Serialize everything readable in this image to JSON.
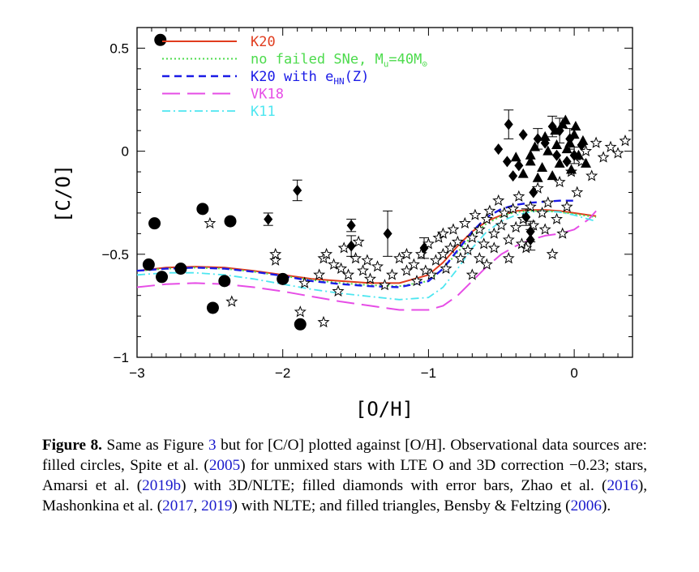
{
  "chart_data": {
    "type": "scatter",
    "xlabel": "[O/H]",
    "ylabel": "[C/O]",
    "xlim": [
      -3,
      0.4
    ],
    "ylim": [
      -1,
      0.6
    ],
    "x_ticks": [
      -3,
      -2,
      -1,
      0
    ],
    "x_tick_labels": [
      "−3",
      "−2",
      "−1",
      "0"
    ],
    "y_ticks": [
      -1,
      -0.5,
      0,
      0.5
    ],
    "y_tick_labels": [
      "−1",
      "−0.5",
      "0",
      "0.5"
    ],
    "legend_position": "top-left",
    "legend": [
      {
        "key": "k20",
        "text": "K20",
        "color": "#e03c1e",
        "dash": "solid",
        "width": 2
      },
      {
        "key": "nofailed",
        "text": "no failed SNe, M",
        "sub": "u",
        "after": "=40M",
        "sub2": "⊙",
        "color": "#4ddb4d",
        "dash": "dotted",
        "width": 2
      },
      {
        "key": "k20hn",
        "text": "K20 with e",
        "sub": "HN",
        "after": "(Z)",
        "color": "#1a1ae6",
        "dash": "dashed",
        "width": 2.4
      },
      {
        "key": "vk18",
        "text": "VK18",
        "color": "#e64de6",
        "dash": "longdash",
        "width": 2
      },
      {
        "key": "k11",
        "text": "K11",
        "color": "#4de6f0",
        "dash": "dashdot",
        "width": 1.8
      }
    ],
    "series": [
      {
        "key": "k20",
        "color": "#e03c1e",
        "x": [
          -3.0,
          -2.8,
          -2.6,
          -2.4,
          -2.2,
          -2.0,
          -1.8,
          -1.6,
          -1.4,
          -1.2,
          -1.0,
          -0.9,
          -0.8,
          -0.7,
          -0.6,
          -0.5,
          -0.4,
          -0.3,
          -0.2,
          -0.1,
          0.0,
          0.1,
          0.15
        ],
        "y": [
          -0.58,
          -0.565,
          -0.56,
          -0.565,
          -0.58,
          -0.6,
          -0.62,
          -0.63,
          -0.64,
          -0.64,
          -0.6,
          -0.54,
          -0.46,
          -0.39,
          -0.34,
          -0.31,
          -0.29,
          -0.285,
          -0.285,
          -0.29,
          -0.3,
          -0.31,
          -0.315
        ]
      },
      {
        "key": "nofailed",
        "color": "#4ddb4d",
        "x": [
          -3.0,
          -2.8,
          -2.6,
          -2.4,
          -2.2,
          -2.0,
          -1.8,
          -1.6,
          -1.4,
          -1.2,
          -1.0,
          -0.9,
          -0.8,
          -0.7,
          -0.6,
          -0.5,
          -0.4,
          -0.3,
          -0.2,
          -0.1,
          0.0,
          0.1,
          0.15
        ],
        "y": [
          -0.58,
          -0.57,
          -0.565,
          -0.57,
          -0.585,
          -0.605,
          -0.625,
          -0.64,
          -0.65,
          -0.655,
          -0.63,
          -0.57,
          -0.49,
          -0.41,
          -0.35,
          -0.315,
          -0.295,
          -0.29,
          -0.29,
          -0.295,
          -0.305,
          -0.315,
          -0.32
        ]
      },
      {
        "key": "k20hn",
        "color": "#1a1ae6",
        "x": [
          -3.0,
          -2.8,
          -2.6,
          -2.4,
          -2.2,
          -2.0,
          -1.8,
          -1.6,
          -1.4,
          -1.2,
          -1.0,
          -0.9,
          -0.8,
          -0.7,
          -0.6,
          -0.5,
          -0.4,
          -0.3,
          -0.2,
          -0.1,
          0.0
        ],
        "y": [
          -0.58,
          -0.57,
          -0.565,
          -0.57,
          -0.585,
          -0.605,
          -0.63,
          -0.645,
          -0.655,
          -0.66,
          -0.63,
          -0.57,
          -0.48,
          -0.39,
          -0.32,
          -0.28,
          -0.26,
          -0.25,
          -0.245,
          -0.24,
          -0.24
        ]
      },
      {
        "key": "vk18",
        "color": "#e64de6",
        "x": [
          -3.0,
          -2.8,
          -2.6,
          -2.4,
          -2.2,
          -2.0,
          -1.8,
          -1.6,
          -1.4,
          -1.2,
          -1.0,
          -0.9,
          -0.8,
          -0.7,
          -0.6,
          -0.5,
          -0.4,
          -0.3,
          -0.2,
          -0.1,
          0.0,
          0.1,
          0.15
        ],
        "y": [
          -0.66,
          -0.645,
          -0.64,
          -0.645,
          -0.66,
          -0.68,
          -0.705,
          -0.73,
          -0.75,
          -0.77,
          -0.77,
          -0.75,
          -0.7,
          -0.63,
          -0.56,
          -0.5,
          -0.46,
          -0.43,
          -0.41,
          -0.4,
          -0.38,
          -0.33,
          -0.29
        ]
      },
      {
        "key": "k11",
        "color": "#4de6f0",
        "x": [
          -3.0,
          -2.8,
          -2.6,
          -2.4,
          -2.2,
          -2.0,
          -1.8,
          -1.6,
          -1.4,
          -1.2,
          -1.0,
          -0.9,
          -0.8,
          -0.7,
          -0.6,
          -0.5,
          -0.4,
          -0.3,
          -0.2,
          -0.1,
          0.0,
          0.1,
          0.15
        ],
        "y": [
          -0.6,
          -0.59,
          -0.59,
          -0.6,
          -0.62,
          -0.645,
          -0.67,
          -0.69,
          -0.705,
          -0.72,
          -0.71,
          -0.66,
          -0.57,
          -0.47,
          -0.39,
          -0.34,
          -0.31,
          -0.295,
          -0.29,
          -0.295,
          -0.31,
          -0.33,
          -0.34
        ]
      }
    ],
    "circles": [
      [
        -2.84,
        0.54
      ],
      [
        -2.92,
        -0.55
      ],
      [
        -2.88,
        -0.35
      ],
      [
        -2.83,
        -0.61
      ],
      [
        -2.7,
        -0.57
      ],
      [
        -2.55,
        -0.28
      ],
      [
        -2.48,
        -0.76
      ],
      [
        -2.4,
        -0.63
      ],
      [
        -2.36,
        -0.34
      ],
      [
        -2.0,
        -0.62
      ],
      [
        -1.88,
        -0.84
      ]
    ],
    "diamonds": [
      {
        "x": -2.1,
        "y": -0.33,
        "err": 0.03
      },
      {
        "x": -1.9,
        "y": -0.19,
        "err": 0.05
      },
      {
        "x": -1.53,
        "y": -0.36,
        "err": 0.03
      },
      {
        "x": -1.53,
        "y": -0.46,
        "err": 0.05
      },
      {
        "x": -1.28,
        "y": -0.4,
        "err": 0.11
      },
      {
        "x": -1.03,
        "y": -0.47,
        "err": 0.05
      },
      {
        "x": -0.45,
        "y": 0.13,
        "err": 0.07
      },
      {
        "x": -0.52,
        "y": 0.01,
        "err": 0.0
      },
      {
        "x": -0.35,
        "y": 0.08,
        "err": 0.0
      },
      {
        "x": -0.3,
        "y": -0.39,
        "err": 0.05
      },
      {
        "x": -0.3,
        "y": -0.43,
        "err": 0.05
      },
      {
        "x": -0.33,
        "y": -0.32,
        "err": 0.04
      },
      {
        "x": -0.1,
        "y": 0.1,
        "err": 0.06
      },
      {
        "x": -0.03,
        "y": 0.06,
        "err": 0.05
      },
      {
        "x": 0.0,
        "y": -0.02,
        "err": 0.04
      },
      {
        "x": -0.15,
        "y": 0.12,
        "err": 0.05
      },
      {
        "x": -0.2,
        "y": 0.04,
        "err": 0.0
      },
      {
        "x": -0.25,
        "y": 0.06,
        "err": 0.05
      },
      {
        "x": -0.38,
        "y": -0.07,
        "err": 0.0
      },
      {
        "x": -0.42,
        "y": -0.12,
        "err": 0.0
      },
      {
        "x": -0.46,
        "y": -0.05,
        "err": 0.0
      },
      {
        "x": -0.12,
        "y": -0.02,
        "err": 0.0
      },
      {
        "x": 0.05,
        "y": 0.03,
        "err": 0.0
      },
      {
        "x": -0.28,
        "y": -0.2,
        "err": 0.0
      },
      {
        "x": -0.05,
        "y": -0.05,
        "err": 0.0
      }
    ],
    "triangles": [
      [
        -0.4,
        -0.03
      ],
      [
        -0.35,
        -0.11
      ],
      [
        -0.3,
        -0.05
      ],
      [
        -0.27,
        0.02
      ],
      [
        -0.22,
        -0.08
      ],
      [
        -0.18,
        0.0
      ],
      [
        -0.15,
        -0.12
      ],
      [
        -0.12,
        0.03
      ],
      [
        -0.1,
        -0.06
      ],
      [
        -0.08,
        0.13
      ],
      [
        -0.05,
        0.01
      ],
      [
        -0.02,
        -0.09
      ],
      [
        0.0,
        0.08
      ],
      [
        0.03,
        -0.02
      ],
      [
        0.06,
        0.05
      ],
      [
        -0.25,
        -0.13
      ],
      [
        -0.2,
        0.07
      ],
      [
        -0.13,
        0.1
      ],
      [
        -0.3,
        -0.02
      ],
      [
        0.08,
        -0.06
      ],
      [
        -0.06,
        0.15
      ],
      [
        -0.03,
        0.04
      ],
      [
        0.01,
        0.12
      ]
    ],
    "stars": [
      [
        -2.5,
        -0.35
      ],
      [
        -2.35,
        -0.73
      ],
      [
        -2.05,
        -0.53
      ],
      [
        -2.05,
        -0.5
      ],
      [
        -1.88,
        -0.78
      ],
      [
        -1.85,
        -0.64
      ],
      [
        -1.75,
        -0.6
      ],
      [
        -1.72,
        -0.52
      ],
      [
        -1.72,
        -0.83
      ],
      [
        -1.7,
        -0.5
      ],
      [
        -1.65,
        -0.55
      ],
      [
        -1.62,
        -0.68
      ],
      [
        -1.6,
        -0.57
      ],
      [
        -1.58,
        -0.47
      ],
      [
        -1.55,
        -0.6
      ],
      [
        -1.5,
        -0.52
      ],
      [
        -1.48,
        -0.44
      ],
      [
        -1.45,
        -0.58
      ],
      [
        -1.42,
        -0.53
      ],
      [
        -1.4,
        -0.62
      ],
      [
        -1.35,
        -0.56
      ],
      [
        -1.3,
        -0.65
      ],
      [
        -1.25,
        -0.6
      ],
      [
        -1.2,
        -0.52
      ],
      [
        -1.15,
        -0.58
      ],
      [
        -1.1,
        -0.55
      ],
      [
        -1.08,
        -0.63
      ],
      [
        -1.05,
        -0.5
      ],
      [
        -1.02,
        -0.58
      ],
      [
        -1.0,
        -0.45
      ],
      [
        -0.98,
        -0.6
      ],
      [
        -0.95,
        -0.53
      ],
      [
        -0.93,
        -0.42
      ],
      [
        -0.9,
        -0.5
      ],
      [
        -0.88,
        -0.57
      ],
      [
        -0.85,
        -0.47
      ],
      [
        -0.83,
        -0.38
      ],
      [
        -0.8,
        -0.44
      ],
      [
        -0.78,
        -0.52
      ],
      [
        -0.75,
        -0.35
      ],
      [
        -0.73,
        -0.48
      ],
      [
        -0.7,
        -0.42
      ],
      [
        -0.68,
        -0.31
      ],
      [
        -0.65,
        -0.38
      ],
      [
        -0.62,
        -0.45
      ],
      [
        -0.6,
        -0.33
      ],
      [
        -0.58,
        -0.29
      ],
      [
        -0.55,
        -0.4
      ],
      [
        -0.52,
        -0.24
      ],
      [
        -0.5,
        -0.36
      ],
      [
        -0.48,
        -0.3
      ],
      [
        -0.45,
        -0.43
      ],
      [
        -0.42,
        -0.28
      ],
      [
        -0.4,
        -0.37
      ],
      [
        -0.38,
        -0.22
      ],
      [
        -0.35,
        -0.33
      ],
      [
        -0.33,
        -0.47
      ],
      [
        -0.3,
        -0.27
      ],
      [
        -0.28,
        -0.36
      ],
      [
        -0.25,
        -0.18
      ],
      [
        -0.22,
        -0.3
      ],
      [
        -0.2,
        -0.38
      ],
      [
        -0.18,
        -0.25
      ],
      [
        -0.15,
        -0.5
      ],
      [
        -0.12,
        -0.33
      ],
      [
        -0.1,
        -0.15
      ],
      [
        -0.08,
        -0.4
      ],
      [
        -0.05,
        -0.27
      ],
      [
        -0.02,
        -0.1
      ],
      [
        0.02,
        -0.2
      ],
      [
        0.05,
        -0.05
      ],
      [
        0.08,
        0.0
      ],
      [
        0.12,
        -0.12
      ],
      [
        0.15,
        0.04
      ],
      [
        0.2,
        -0.03
      ],
      [
        0.25,
        0.02
      ],
      [
        0.3,
        -0.01
      ],
      [
        0.35,
        0.05
      ],
      [
        -0.6,
        -0.55
      ],
      [
        -0.7,
        -0.6
      ],
      [
        -0.9,
        -0.4
      ],
      [
        -1.15,
        -0.5
      ],
      [
        -0.45,
        -0.52
      ],
      [
        -0.55,
        -0.47
      ],
      [
        -0.65,
        -0.52
      ],
      [
        -0.36,
        -0.45
      ]
    ]
  },
  "caption": {
    "fig_label": "Figure 8.",
    "t1": " Same as Figure ",
    "ref1": "3",
    "t2": " but for [C/O] plotted against [O/H]. Observational data sources are: filled circles, Spite et al. (",
    "ref2": "2005",
    "t3": ") for unmixed stars with LTE O and 3D correction −0.23; stars, Amarsi et al. (",
    "ref3": "2019b",
    "t4": ") with 3D/NLTE; filled diamonds with error bars, Zhao et al. (",
    "ref4": "2016",
    "t5": "), Mashonkina et al. (",
    "ref5": "2017",
    "t6": ", ",
    "ref6": "2019",
    "t7": ") with NLTE; and filled triangles, Bensby & Feltzing (",
    "ref7": "2006",
    "t8": ")."
  }
}
